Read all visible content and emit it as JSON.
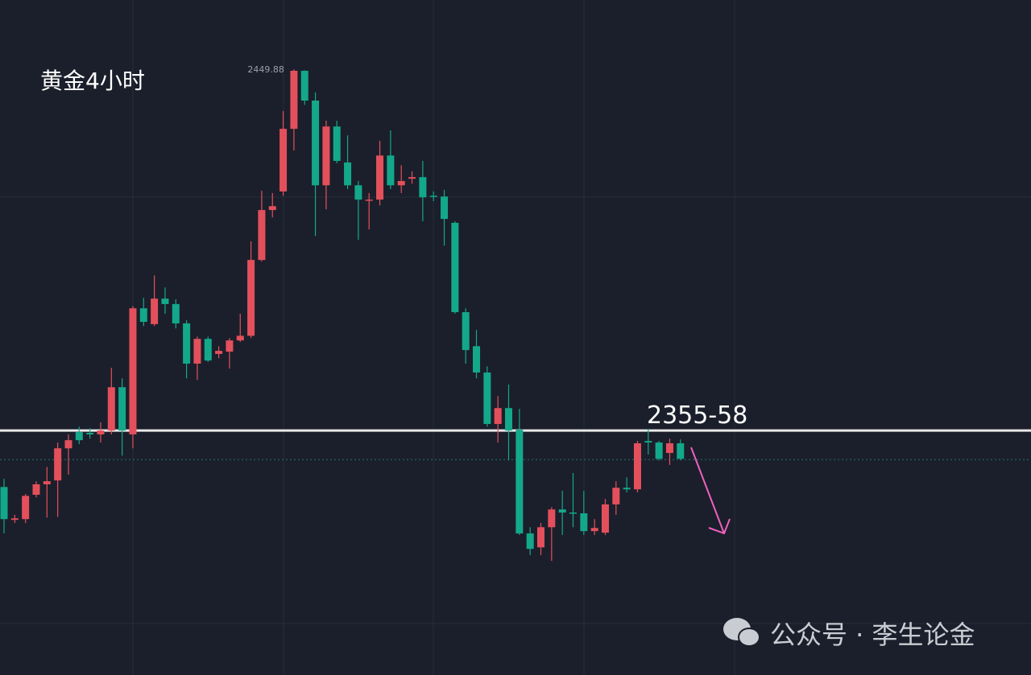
{
  "chart_data": {
    "type": "candlestick",
    "title": "黄金4小时",
    "annotation": "2355-58",
    "watermark": "公众号 · 李生论金",
    "up_color": "#e3505c",
    "down_color": "#14a88b",
    "ylim": [
      2293.3,
      2467.8
    ],
    "level": 2356.5,
    "current_price": 2349.0,
    "high_label_index": 27,
    "open": [
      2341.9,
      2333.4,
      2333.6,
      2339.9,
      2342.6,
      2343.6,
      2351.9,
      2356.1,
      2355.9,
      2355.5,
      2356.5,
      2367.7,
      2355.5,
      2388.1,
      2384.0,
      2390.6,
      2389.2,
      2384.2,
      2373.8,
      2380.2,
      2376.3,
      2376.9,
      2379.8,
      2381.0,
      2400.6,
      2413.5,
      2418.3,
      2434.5,
      2449.5,
      2441.8,
      2419.9,
      2435.1,
      2425.8,
      2419.9,
      2416.0,
      2416.2,
      2427.6,
      2419.9,
      2421.6,
      2422.0,
      2417.2,
      2417.0,
      2410.2,
      2387.1,
      2378.3,
      2371.5,
      2358.2,
      2362.3,
      2356.7,
      2329.9,
      2326.3,
      2331.5,
      2336.1,
      2335.3,
      2335.1,
      2330.5,
      2330.1,
      2337.4,
      2341.7,
      2341.3,
      2353.8,
      2353.4,
      2350.7,
      2353.2
    ],
    "high": [
      2344.0,
      2334.7,
      2340.1,
      2343.4,
      2347.1,
      2353.4,
      2355.5,
      2357.5,
      2357.1,
      2358.6,
      2372.7,
      2370.0,
      2388.7,
      2390.8,
      2396.6,
      2393.5,
      2390.4,
      2385.0,
      2380.8,
      2380.8,
      2378.3,
      2380.4,
      2386.7,
      2405.4,
      2418.5,
      2417.9,
      2439.1,
      2449.88,
      2449.6,
      2443.9,
      2436.6,
      2436.6,
      2432.8,
      2421.0,
      2417.9,
      2431.4,
      2434.1,
      2425.1,
      2423.5,
      2426.2,
      2418.3,
      2418.7,
      2410.6,
      2388.1,
      2382.5,
      2373.1,
      2365.4,
      2368.4,
      2362.1,
      2331.5,
      2332.6,
      2336.7,
      2340.9,
      2345.5,
      2340.9,
      2333.6,
      2338.8,
      2343.4,
      2344.4,
      2353.8,
      2356.9,
      2353.8,
      2354.4,
      2354.2
    ],
    "low": [
      2329.9,
      2332.6,
      2332.6,
      2339.2,
      2334.0,
      2334.2,
      2345.1,
      2353.0,
      2354.4,
      2353.4,
      2355.5,
      2350.0,
      2351.9,
      2383.5,
      2383.5,
      2386.7,
      2382.9,
      2370.0,
      2369.6,
      2374.2,
      2375.2,
      2372.5,
      2379.4,
      2380.4,
      2400.2,
      2411.6,
      2417.2,
      2428.9,
      2440.7,
      2406.8,
      2413.7,
      2425.6,
      2418.9,
      2405.8,
      2408.5,
      2414.7,
      2418.9,
      2417.9,
      2420.3,
      2410.6,
      2415.8,
      2404.3,
      2386.7,
      2373.8,
      2370.0,
      2357.5,
      2353.4,
      2348.8,
      2329.5,
      2324.3,
      2324.3,
      2322.8,
      2329.5,
      2331.5,
      2329.5,
      2329.5,
      2329.5,
      2334.7,
      2340.5,
      2340.5,
      2350.3,
      2348.8,
      2347.6,
      2348.8
    ],
    "close": [
      2333.6,
      2333.8,
      2339.6,
      2342.6,
      2343.4,
      2351.9,
      2354.0,
      2354.0,
      2355.5,
      2356.5,
      2367.7,
      2356.5,
      2388.1,
      2384.6,
      2390.6,
      2389.2,
      2384.2,
      2373.8,
      2380.2,
      2374.6,
      2377.1,
      2379.8,
      2381.0,
      2400.6,
      2413.5,
      2414.5,
      2434.5,
      2449.5,
      2441.8,
      2419.9,
      2435.1,
      2426.2,
      2419.9,
      2416.2,
      2416.2,
      2427.6,
      2419.9,
      2421.0,
      2422.0,
      2416.8,
      2417.0,
      2411.2,
      2387.1,
      2377.3,
      2371.5,
      2358.2,
      2362.3,
      2356.5,
      2329.9,
      2325.9,
      2331.5,
      2336.1,
      2335.3,
      2335.1,
      2330.5,
      2331.3,
      2337.4,
      2341.7,
      2341.3,
      2353.2,
      2353.4,
      2349.2,
      2353.2,
      2349.2
    ]
  }
}
